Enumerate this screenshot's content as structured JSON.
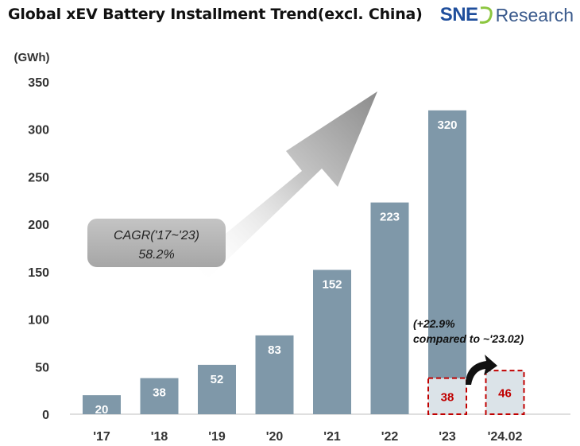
{
  "header": {
    "title": "Global xEV Battery Installment Trend(excl. China)",
    "logo_sne": "SNE",
    "logo_research": "Research"
  },
  "colors": {
    "bar": "#7f98a9",
    "bar_partial": "#dbe3e8",
    "partial_border": "#c00000",
    "partial_label": "#c00000",
    "axis_text": "#333333",
    "brand_blue": "#1f4e9c",
    "brand_green": "#8cc63f"
  },
  "chart_data": {
    "type": "bar",
    "title": "Global xEV Battery Installment Trend(excl. China)",
    "ylabel": "(GWh)",
    "xlabel": "",
    "ylim": [
      0,
      350
    ],
    "yticks": [
      0,
      50,
      100,
      150,
      200,
      250,
      300,
      350
    ],
    "grid": false,
    "categories": [
      "'17",
      "'18",
      "'19",
      "'20",
      "'21",
      "'22",
      "'23",
      "'24.02"
    ],
    "series": [
      {
        "values": [
          20,
          38,
          52,
          83,
          152,
          223,
          320,
          null
        ],
        "labels": [
          "20",
          "38",
          "52",
          "83",
          "152",
          "223",
          "320",
          ""
        ]
      },
      {
        "values": [
          null,
          null,
          null,
          null,
          null,
          null,
          38,
          46
        ],
        "labels": [
          "",
          "",
          "",
          "",
          "",
          "",
          "38",
          "46"
        ]
      }
    ],
    "annotations": {
      "cagr_line1": "CAGR('17~'23)",
      "cagr_line2": "58.2%",
      "growth_line1": "(+22.9%",
      "growth_line2": "compared to ~'23.02)"
    }
  }
}
